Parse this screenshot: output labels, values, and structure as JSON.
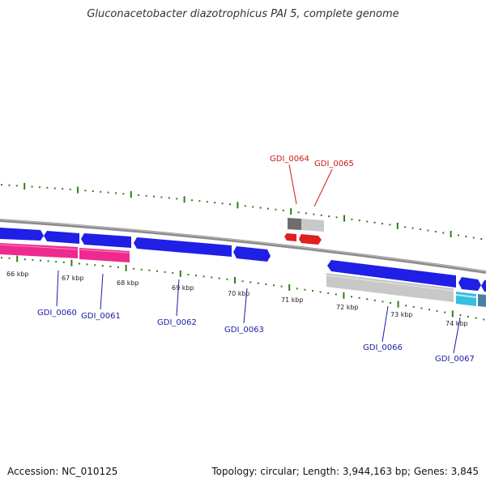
{
  "title": "Gluconacetobacter diazotrophicus PAI 5, complete genome",
  "footer": {
    "accession": "Accession: NC_010125",
    "summary": "Topology: circular; Length: 3,944,163 bp; Genes: 3,845"
  },
  "colors": {
    "forward_gene": "#1f1fe6",
    "reverse_gene": "#e01f1f",
    "cds_pink": "#ee2a8f",
    "cds_gray": "#c8c8c8",
    "cds_dark": "#6e6e6e",
    "cds_cyan": "#33bfe0",
    "cds_steel": "#4a7fa8",
    "backbone": "#8c8c8c",
    "tick": "#2e7d1a",
    "label_forward": "#1a1aa6",
    "label_reverse": "#cc1a1a"
  },
  "kbp_labels": [
    "66 kbp",
    "67 kbp",
    "68 kbp",
    "69 kbp",
    "70 kbp",
    "71 kbp",
    "72 kbp",
    "73 kbp",
    "74 kbp"
  ],
  "genes": [
    {
      "id": "GDI_0060",
      "strand": "forward"
    },
    {
      "id": "GDI_0061",
      "strand": "forward"
    },
    {
      "id": "GDI_0062",
      "strand": "forward"
    },
    {
      "id": "GDI_0063",
      "strand": "forward"
    },
    {
      "id": "GDI_0064",
      "strand": "reverse"
    },
    {
      "id": "GDI_0065",
      "strand": "reverse"
    },
    {
      "id": "GDI_0066",
      "strand": "forward"
    },
    {
      "id": "GDI_0067",
      "strand": "forward"
    }
  ]
}
